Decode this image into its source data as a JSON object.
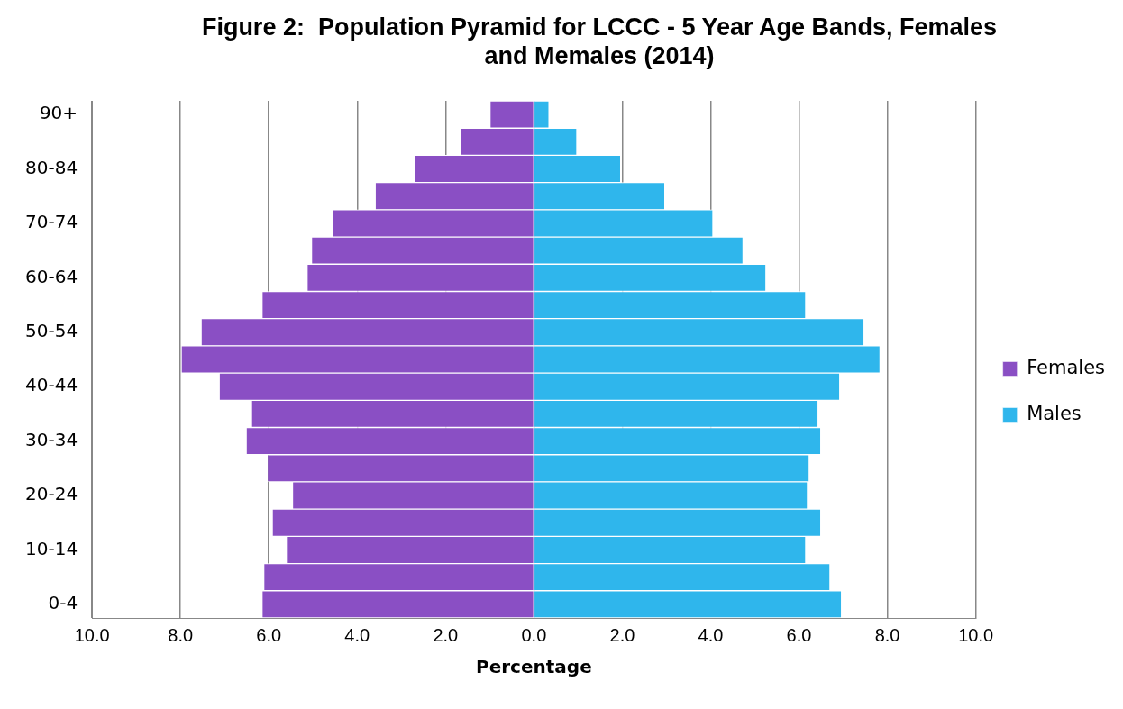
{
  "chart_data": {
    "type": "bar",
    "orientation": "horizontal",
    "stacked": true,
    "title": "Figure 2:  Population Pyramid for LCCC - 5 Year Age Bands, Females and Memales (2014)",
    "xlabel": "Percentage",
    "categories": [
      "90+",
      null,
      "80-84",
      null,
      "70-74",
      null,
      "60-64",
      null,
      "50-54",
      null,
      "40-44",
      null,
      "30-34",
      null,
      "20-24",
      null,
      "10-14",
      null,
      "0-4"
    ],
    "series": [
      {
        "name": "Females",
        "color": "#8a4fc4",
        "values": [
          -0.98,
          -1.65,
          -2.7,
          -3.58,
          -4.55,
          -5.02,
          -5.12,
          -6.14,
          -7.52,
          -7.97,
          -7.11,
          -6.38,
          -6.5,
          -6.02,
          -5.45,
          -5.91,
          -5.59,
          -6.1,
          -6.14
        ]
      },
      {
        "name": "Males",
        "color": "#2fb6ec",
        "values": [
          0.33,
          0.96,
          1.95,
          2.95,
          4.04,
          4.72,
          5.24,
          6.14,
          7.46,
          7.82,
          6.91,
          6.42,
          6.48,
          6.22,
          6.18,
          6.48,
          6.14,
          6.69,
          6.95
        ]
      }
    ],
    "xlim": [
      -10,
      10
    ],
    "xticks": [
      {
        "value": -10,
        "label": "10.0"
      },
      {
        "value": -8,
        "label": "8.0"
      },
      {
        "value": -6,
        "label": "6.0"
      },
      {
        "value": -4,
        "label": "4.0"
      },
      {
        "value": -2,
        "label": "2.0"
      },
      {
        "value": 0,
        "label": "0.0"
      },
      {
        "value": 2,
        "label": "2.0"
      },
      {
        "value": 4,
        "label": "4.0"
      },
      {
        "value": 6,
        "label": "6.0"
      },
      {
        "value": 8,
        "label": "8.0"
      },
      {
        "value": 10,
        "label": "10.0"
      }
    ],
    "grid": "x",
    "legend": "right"
  }
}
